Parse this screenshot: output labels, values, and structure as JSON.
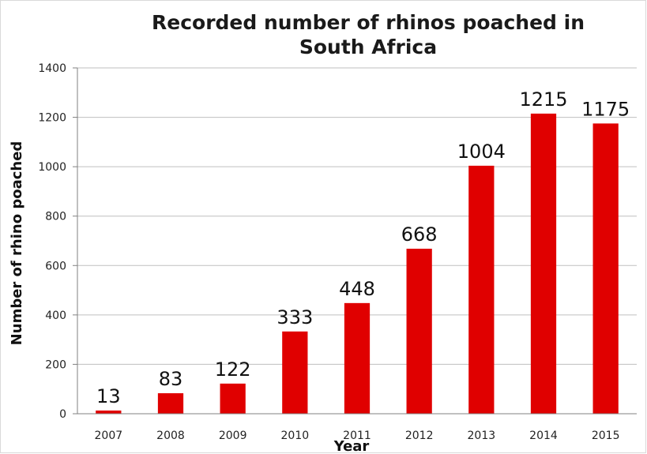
{
  "chart_data": {
    "type": "bar",
    "title": "Recorded number of rhinos poached in South Africa",
    "title_lines": [
      "Recorded number of rhinos poached in",
      "South Africa"
    ],
    "xlabel": "Year",
    "ylabel": "Number of rhino  poached",
    "categories": [
      "2007",
      "2008",
      "2009",
      "2010",
      "2011",
      "2012",
      "2013",
      "2014",
      "2015"
    ],
    "values": [
      13,
      83,
      122,
      333,
      448,
      668,
      1004,
      1215,
      1175
    ],
    "data_labels": [
      "13",
      "83",
      "122",
      "333",
      "448",
      "668",
      "1004",
      "1215",
      "1175"
    ],
    "ylim": [
      0,
      1400
    ],
    "yticks": [
      0,
      200,
      400,
      600,
      800,
      1000,
      1200,
      1400
    ],
    "grid": true,
    "legend": "none",
    "bar_color": "#e00000",
    "grid_color": "#bfbfbf"
  }
}
